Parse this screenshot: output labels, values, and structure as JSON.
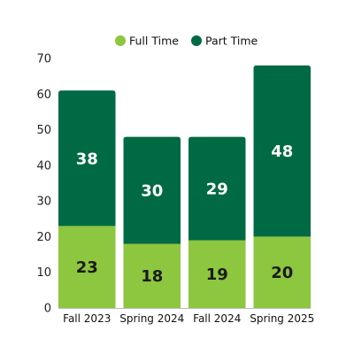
{
  "chart_data": {
    "type": "bar",
    "stacked": true,
    "categories": [
      "Fall 2023",
      "Spring 2024",
      "Fall 2024",
      "Spring 2025"
    ],
    "series": [
      {
        "name": "Full Time",
        "values": [
          23,
          18,
          19,
          20
        ],
        "color": "#8dc63f",
        "label_color": "#1b1b1b"
      },
      {
        "name": "Part Time",
        "values": [
          38,
          30,
          29,
          48
        ],
        "color": "#006a44",
        "label_color": "#ffffff"
      }
    ],
    "ylim": [
      0,
      70
    ],
    "yticks": [
      0,
      10,
      20,
      30,
      40,
      50,
      60,
      70
    ],
    "grid": false,
    "legend": "top-center",
    "data_labels": true
  }
}
